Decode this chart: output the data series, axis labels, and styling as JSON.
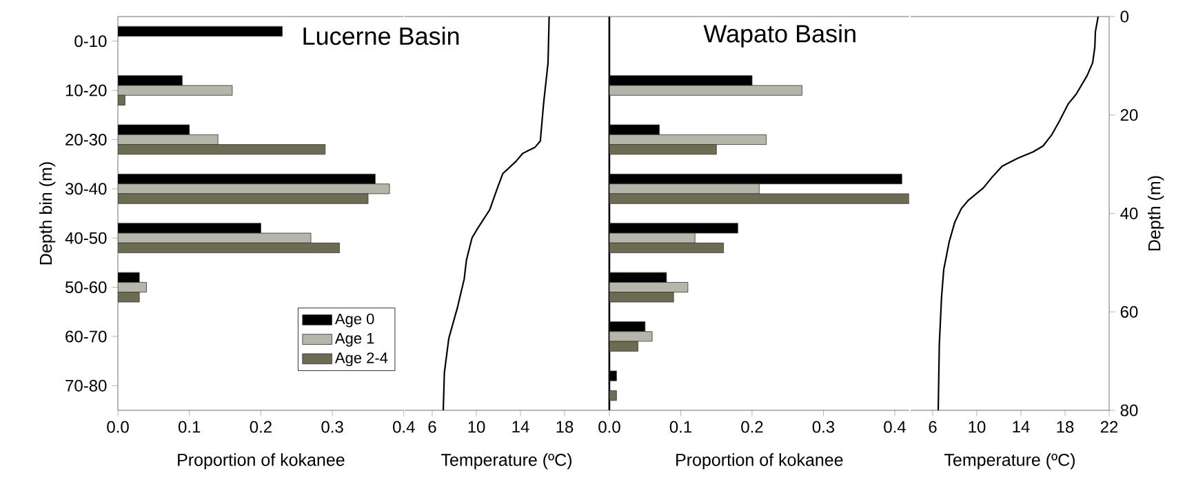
{
  "chart_data": [
    {
      "type": "bar",
      "orientation": "horizontal",
      "title": "Lucerne Basin",
      "xlabel": "Proportion of kokanee",
      "ylabel": "Depth bin (m)",
      "categories": [
        "0-10",
        "10-20",
        "20-30",
        "30-40",
        "40-50",
        "50-60",
        "60-70",
        "70-80"
      ],
      "xlim": [
        0,
        0.4
      ],
      "xticks": [
        {
          "value": 0,
          "label": "0.0"
        },
        0.1,
        0.2,
        0.3,
        0.4
      ],
      "legend": "bottom right",
      "series": [
        {
          "name": "Age 0",
          "color": "#000000",
          "values": [
            0.23,
            0.09,
            0.1,
            0.36,
            0.2,
            0.03,
            null,
            null
          ]
        },
        {
          "name": "Age 1",
          "color": "#b5b5a9",
          "values": [
            null,
            0.16,
            0.14,
            0.38,
            0.27,
            0.04,
            null,
            null
          ]
        },
        {
          "name": "Age 2-4",
          "color": "#6c6c53",
          "values": [
            null,
            0.01,
            0.29,
            0.35,
            0.31,
            0.03,
            null,
            null
          ]
        }
      ]
    },
    {
      "type": "line",
      "xlabel": "Temperature (ºC)",
      "xlim": [
        3.5,
        22
      ],
      "xticks": [
        6,
        10,
        14,
        18
      ],
      "ylim": [
        80,
        0
      ],
      "series": [
        {
          "color": "#000000",
          "x": [
            16.6,
            16.5,
            16.1,
            15.8,
            15.3,
            14.2,
            13.6,
            12.4,
            11.9,
            11.2,
            10.1,
            9.6,
            9.1,
            8.9,
            8.3,
            7.5,
            7.1,
            7.0
          ],
          "values": [
            0,
            9.4,
            17.6,
            25.3,
            26.6,
            27.8,
            29.4,
            31.9,
            34.9,
            39.3,
            43.1,
            45,
            49.5,
            53.3,
            59,
            65.4,
            72.4,
            80
          ]
        }
      ]
    },
    {
      "type": "bar",
      "orientation": "horizontal",
      "title": "Wapato Basin",
      "xlabel": "Proportion of kokanee",
      "categories": [
        null,
        null,
        null,
        null,
        null,
        null,
        null,
        null
      ],
      "xlim": [
        0,
        0.42
      ],
      "xticks": [
        {
          "value": 0,
          "label": "0.0"
        },
        0.1,
        0.2,
        0.3,
        0.4
      ],
      "series": [
        {
          "color": "#000000",
          "values": [
            null,
            0.2,
            0.07,
            0.41,
            0.18,
            0.08,
            0.05,
            0.01
          ]
        },
        {
          "color": "#b5b5a9",
          "values": [
            null,
            0.27,
            0.22,
            0.21,
            0.12,
            0.11,
            0.06,
            null
          ]
        },
        {
          "color": "#6c6c53",
          "values": [
            null,
            null,
            0.15,
            0.42,
            0.16,
            0.09,
            0.04,
            0.01
          ]
        }
      ]
    },
    {
      "type": "line",
      "xlabel": "Temperature (ºC)",
      "ylabel": "Depth (m)",
      "xlim": [
        4,
        22
      ],
      "xticks": [
        6,
        10,
        14,
        18,
        22
      ],
      "ylim": [
        80,
        0
      ],
      "yticks": [
        0,
        20,
        40,
        60,
        80
      ],
      "series": [
        {
          "color": "#000000",
          "x": [
            21.0,
            20.75,
            20.7,
            20.5,
            20.0,
            19.0,
            18.3,
            17.5,
            16.8,
            16.0,
            15.1,
            13.7,
            12.3,
            11.4,
            10.6,
            9.2,
            8.6,
            8.0,
            7.5,
            7.0,
            6.8,
            6.6,
            6.5
          ],
          "values": [
            0,
            3.1,
            6.2,
            9.4,
            12.0,
            15.8,
            17.7,
            21.2,
            24.0,
            26.3,
            27.5,
            28.8,
            30.4,
            32.6,
            34.8,
            37.4,
            39.0,
            41.8,
            45.7,
            51.4,
            57.1,
            66.6,
            80
          ]
        }
      ]
    }
  ]
}
